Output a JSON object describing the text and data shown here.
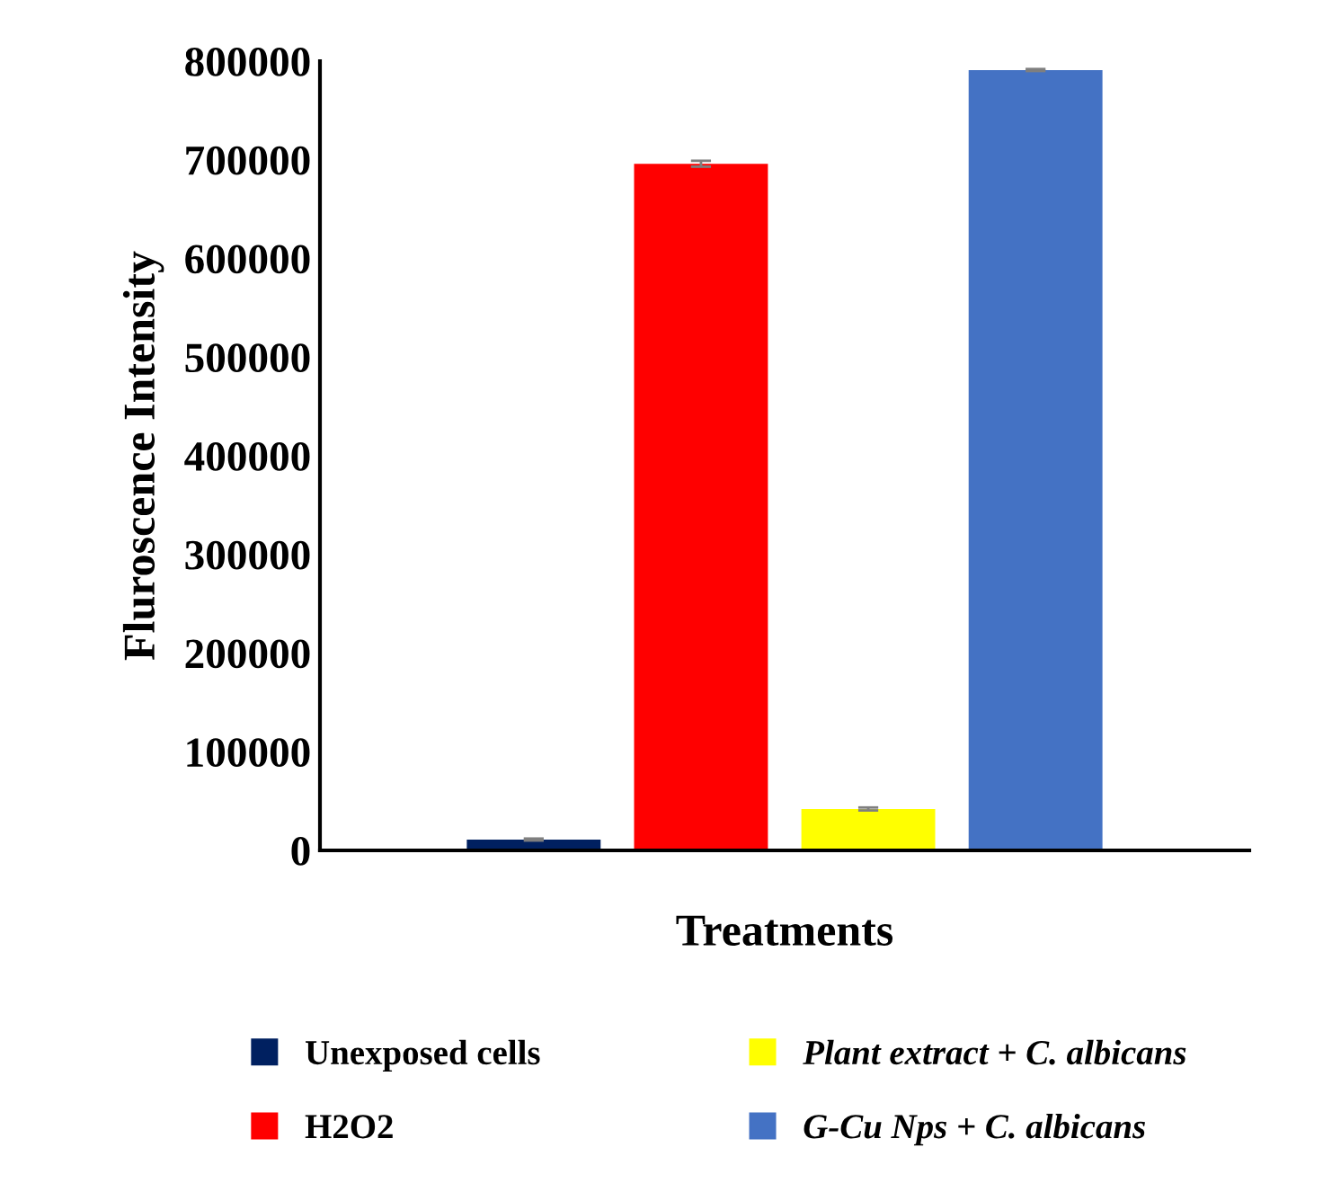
{
  "chart_data": {
    "type": "bar",
    "xlabel": "Treatments",
    "ylabel": "Fluroscence Intensity",
    "categories": [
      null
    ],
    "series": [
      {
        "name": "Unexposed cells",
        "color": "#002060",
        "values": [
          11000
        ],
        "errors": [
          1000
        ]
      },
      {
        "name": "H2O2",
        "color": "#ff0000",
        "values": [
          696000
        ],
        "errors": [
          3000
        ]
      },
      {
        "name": "Plant extract + C. albicans",
        "color": "#ffff00",
        "values": [
          42000
        ],
        "errors": [
          1500
        ]
      },
      {
        "name": "G-Cu Nps + C. albicans",
        "color": "#4472c4",
        "values": [
          791000
        ],
        "errors": [
          1000
        ]
      }
    ],
    "ylim": [
      0,
      800000
    ],
    "yticks": [
      0,
      100000,
      200000,
      300000,
      400000,
      500000,
      600000,
      700000,
      800000
    ],
    "legend": "bottom",
    "grid": false
  }
}
